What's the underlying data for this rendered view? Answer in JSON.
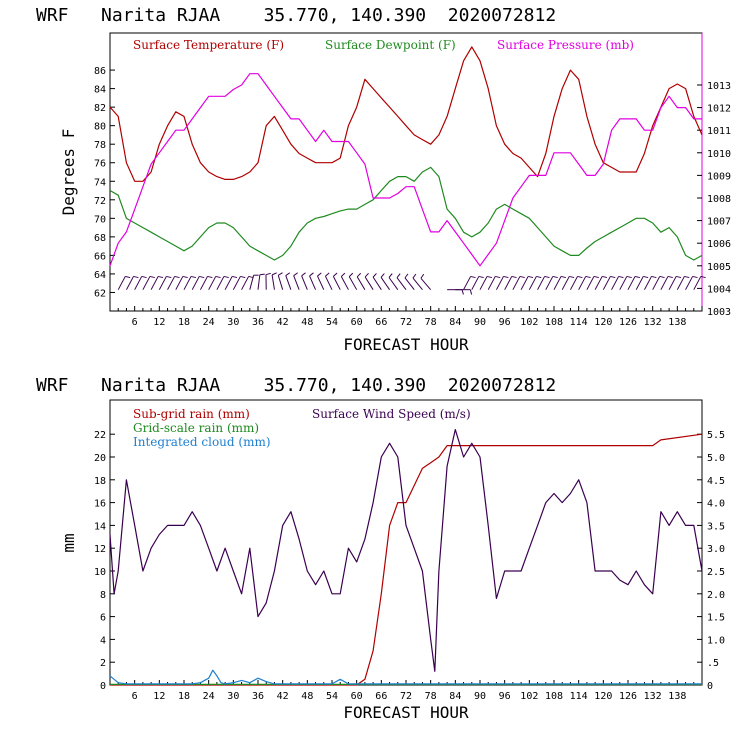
{
  "chart_data": [
    {
      "type": "line",
      "title": "WRF   Narita RJAA    35.770, 140.390  2020072812",
      "xlabel": "FORECAST HOUR",
      "ylabel": "Degrees F",
      "xlim": [
        0,
        144
      ],
      "x_ticks": [
        "6",
        "12",
        "18",
        "24",
        "30",
        "36",
        "42",
        "48",
        "54",
        "60",
        "66",
        "72",
        "78",
        "84",
        "90",
        "96",
        "102",
        "108",
        "114",
        "120",
        "126",
        "132",
        "138"
      ],
      "ylim": [
        60,
        90
      ],
      "y_ticks": [
        "62",
        "64",
        "66",
        "68",
        "70",
        "72",
        "74",
        "76",
        "78",
        "80",
        "82",
        "84",
        "86"
      ],
      "y2lim": [
        1003,
        1015.3
      ],
      "y2_ticks": [
        "1003",
        "1004",
        "1005",
        "1006",
        "1007",
        "1008",
        "1009",
        "1010",
        "1011",
        "1012",
        "1013"
      ],
      "legend": [
        {
          "label": "Surface Temperature (F)",
          "color": "#b00000"
        },
        {
          "label": "Surface Dewpoint (F)",
          "color": "#1f8a1f"
        },
        {
          "label": "Surface Pressure (mb)",
          "color": "#e000e0"
        }
      ],
      "series": [
        {
          "name": "Surface Temperature (F)",
          "color": "#b00000",
          "axis": "left",
          "x": [
            0,
            2,
            4,
            6,
            8,
            10,
            12,
            14,
            16,
            18,
            20,
            22,
            24,
            26,
            28,
            30,
            32,
            34,
            36,
            38,
            40,
            42,
            44,
            46,
            48,
            50,
            52,
            54,
            56,
            58,
            60,
            62,
            64,
            66,
            68,
            70,
            72,
            74,
            76,
            78,
            80,
            82,
            84,
            86,
            88,
            90,
            92,
            94,
            96,
            98,
            100,
            102,
            104,
            106,
            108,
            110,
            112,
            114,
            116,
            118,
            120,
            122,
            124,
            126,
            128,
            130,
            132,
            134,
            136,
            138,
            140,
            142,
            144
          ],
          "values": [
            82,
            81,
            76,
            74,
            74,
            75,
            78,
            80,
            81.5,
            81,
            78,
            76,
            75,
            74.5,
            74.2,
            74.2,
            74.5,
            75,
            76,
            80,
            81,
            79.5,
            78,
            77,
            76.5,
            76,
            76,
            76,
            76.5,
            80,
            82,
            85,
            84,
            83,
            82,
            81,
            80,
            79,
            78.5,
            78,
            79,
            81,
            84,
            87,
            88.5,
            87,
            84,
            80,
            78,
            77,
            76.5,
            75.5,
            74.5,
            77,
            81,
            84,
            86,
            85,
            81,
            78,
            76,
            75.5,
            75,
            75,
            75,
            77,
            80,
            82,
            84,
            84.5,
            84,
            81,
            79
          ]
        },
        {
          "name": "Surface Dewpoint (F)",
          "color": "#1f8a1f",
          "axis": "left",
          "x": [
            0,
            2,
            4,
            6,
            8,
            10,
            12,
            14,
            16,
            18,
            20,
            22,
            24,
            26,
            28,
            30,
            32,
            34,
            36,
            38,
            40,
            42,
            44,
            46,
            48,
            50,
            52,
            54,
            56,
            58,
            60,
            62,
            64,
            66,
            68,
            70,
            72,
            74,
            76,
            78,
            80,
            82,
            84,
            86,
            88,
            90,
            92,
            94,
            96,
            98,
            100,
            102,
            104,
            106,
            108,
            110,
            112,
            114,
            116,
            118,
            120,
            122,
            124,
            126,
            128,
            130,
            132,
            134,
            136,
            138,
            140,
            142,
            144
          ],
          "values": [
            73,
            72.5,
            70,
            69.5,
            69,
            68.5,
            68,
            67.5,
            67,
            66.5,
            67,
            68,
            69,
            69.5,
            69.5,
            69,
            68,
            67,
            66.5,
            66,
            65.5,
            66,
            67,
            68.5,
            69.5,
            70,
            70.2,
            70.5,
            70.8,
            71,
            71,
            71.5,
            72,
            73,
            74,
            74.5,
            74.5,
            74,
            75,
            75.5,
            74.5,
            71,
            70,
            68.5,
            68,
            68.5,
            69.5,
            71,
            71.5,
            71,
            70.5,
            70,
            69,
            68,
            67,
            66.5,
            66,
            66,
            66.8,
            67.5,
            68,
            68.5,
            69,
            69.5,
            70,
            70,
            69.5,
            68.5,
            69,
            68,
            66,
            65.5,
            66
          ]
        },
        {
          "name": "Surface Pressure (mb)",
          "color": "#e000e0",
          "axis": "right",
          "x": [
            0,
            2,
            4,
            6,
            8,
            10,
            12,
            14,
            16,
            18,
            20,
            22,
            24,
            26,
            28,
            30,
            32,
            34,
            36,
            38,
            40,
            42,
            44,
            46,
            48,
            50,
            52,
            54,
            56,
            58,
            60,
            62,
            64,
            66,
            68,
            70,
            72,
            74,
            76,
            78,
            80,
            82,
            84,
            86,
            88,
            90,
            92,
            94,
            96,
            98,
            100,
            102,
            104,
            106,
            108,
            110,
            112,
            114,
            116,
            118,
            120,
            122,
            124,
            126,
            128,
            130,
            132,
            134,
            136,
            138,
            140,
            142,
            144
          ],
          "values": [
            1005,
            1006,
            1006.5,
            1007.5,
            1008.5,
            1009.5,
            1010,
            1010.5,
            1011,
            1011,
            1011.5,
            1012,
            1012.5,
            1012.5,
            1012.5,
            1012.8,
            1013,
            1013.5,
            1013.5,
            1013,
            1012.5,
            1012,
            1011.5,
            1011.5,
            1011,
            1010.5,
            1011,
            1010.5,
            1010.5,
            1010.5,
            1010,
            1009.5,
            1008,
            1008,
            1008,
            1008.2,
            1008.5,
            1008.5,
            1007.5,
            1006.5,
            1006.5,
            1007,
            1006.5,
            1006,
            1005.5,
            1005,
            1005.5,
            1006,
            1007,
            1008,
            1008.5,
            1009,
            1009,
            1009,
            1010,
            1010,
            1010,
            1009.5,
            1009,
            1009,
            1009.5,
            1011,
            1011.5,
            1011.5,
            1011.5,
            1011,
            1011,
            1012,
            1012.5,
            1012,
            1012,
            1011.5,
            1011.5
          ]
        }
      ],
      "wind_barbs_hours": [
        2,
        4,
        6,
        8,
        10,
        12,
        14,
        16,
        18,
        20,
        22,
        24,
        26,
        28,
        30,
        32,
        34,
        36,
        38,
        40,
        42,
        44,
        46,
        48,
        50,
        52,
        54,
        56,
        58,
        60,
        62,
        64,
        66,
        68,
        70,
        72,
        74,
        76,
        78,
        82,
        84,
        86,
        88,
        90,
        92,
        94,
        96,
        98,
        100,
        102,
        104,
        106,
        108,
        110,
        112,
        114,
        116,
        118,
        120,
        122,
        124,
        126,
        128,
        130,
        132,
        134,
        136,
        138,
        140,
        142
      ]
    },
    {
      "type": "line",
      "title": "WRF   Narita RJAA    35.770, 140.390  2020072812",
      "xlabel": "FORECAST HOUR",
      "ylabel": "mm",
      "xlim": [
        0,
        144
      ],
      "x_ticks": [
        "6",
        "12",
        "18",
        "24",
        "30",
        "36",
        "42",
        "48",
        "54",
        "60",
        "66",
        "72",
        "78",
        "84",
        "90",
        "96",
        "102",
        "108",
        "114",
        "120",
        "126",
        "132",
        "138"
      ],
      "ylim": [
        0,
        25
      ],
      "y_ticks": [
        "0",
        "2",
        "4",
        "6",
        "8",
        "10",
        "12",
        "14",
        "16",
        "18",
        "20",
        "22"
      ],
      "y2lim": [
        0,
        6.25
      ],
      "y2_ticks": [
        "0",
        ".5",
        "1.0",
        "1.5",
        "2.0",
        "2.5",
        "3.0",
        "3.5",
        "4.0",
        "4.5",
        "5.0",
        "5.5"
      ],
      "legend": [
        {
          "label": "Sub-grid rain (mm)",
          "color": "#b00000"
        },
        {
          "label": "Surface Wind Speed (m/s)",
          "color": "#3a0050"
        },
        {
          "label": "Grid-scale rain (mm)",
          "color": "#1f8a1f"
        },
        {
          "label": "Integrated cloud (mm)",
          "color": "#1e7fd0"
        }
      ],
      "series": [
        {
          "name": "Sub-grid rain (mm)",
          "color": "#b00000",
          "axis": "left",
          "x": [
            0,
            60,
            62,
            64,
            66,
            68,
            70,
            72,
            76,
            78,
            80,
            82,
            88,
            90,
            132,
            134,
            144
          ],
          "values": [
            0,
            0,
            0.5,
            3,
            8,
            14,
            16,
            16,
            19,
            19.5,
            20,
            21,
            21,
            21,
            21,
            21.5,
            22
          ]
        },
        {
          "name": "Surface Wind Speed (m/s)",
          "color": "#3a0050",
          "axis": "right",
          "x": [
            0,
            1,
            2,
            4,
            6,
            8,
            10,
            12,
            14,
            16,
            18,
            20,
            22,
            24,
            26,
            28,
            30,
            32,
            34,
            36,
            38,
            40,
            42,
            44,
            46,
            48,
            50,
            52,
            54,
            56,
            58,
            60,
            62,
            64,
            66,
            68,
            70,
            72,
            74,
            76,
            78,
            79,
            80,
            82,
            84,
            86,
            88,
            90,
            92,
            94,
            96,
            98,
            100,
            102,
            104,
            106,
            108,
            110,
            112,
            114,
            116,
            118,
            120,
            122,
            124,
            126,
            128,
            130,
            132,
            134,
            136,
            138,
            140,
            142,
            144
          ],
          "values": [
            3.3,
            2.0,
            2.5,
            4.5,
            3.5,
            2.5,
            3.0,
            3.3,
            3.5,
            3.5,
            3.5,
            3.8,
            3.5,
            3.0,
            2.5,
            3.0,
            2.5,
            2.0,
            3.0,
            1.5,
            1.8,
            2.5,
            3.5,
            3.8,
            3.2,
            2.5,
            2.2,
            2.5,
            2.0,
            2.0,
            3.0,
            2.7,
            3.2,
            4.0,
            5.0,
            5.3,
            5.0,
            3.5,
            3.0,
            2.5,
            1.0,
            0.3,
            2.5,
            4.8,
            5.6,
            5.0,
            5.3,
            5.0,
            3.5,
            1.9,
            2.5,
            2.5,
            2.5,
            3.0,
            3.5,
            4.0,
            4.2,
            4.0,
            4.2,
            4.5,
            4.0,
            2.5,
            2.5,
            2.5,
            2.3,
            2.2,
            2.5,
            2.2,
            2.0,
            3.8,
            3.5,
            3.8,
            3.5,
            3.5,
            2.5
          ]
        },
        {
          "name": "Grid-scale rain (mm)",
          "color": "#1f8a1f",
          "axis": "left",
          "x": [
            0,
            144
          ],
          "values": [
            0.05,
            0.05
          ]
        },
        {
          "name": "Integrated cloud (mm)",
          "color": "#1e7fd0",
          "axis": "left",
          "x": [
            0,
            2,
            4,
            20,
            22,
            24,
            25,
            26,
            27,
            28,
            30,
            32,
            34,
            36,
            38,
            40,
            54,
            56,
            58,
            144
          ],
          "values": [
            0.8,
            0.2,
            0.1,
            0.1,
            0.2,
            0.6,
            1.3,
            0.8,
            0.2,
            0.1,
            0.2,
            0.4,
            0.2,
            0.6,
            0.3,
            0.1,
            0.1,
            0.5,
            0.1,
            0.1
          ]
        }
      ]
    }
  ]
}
